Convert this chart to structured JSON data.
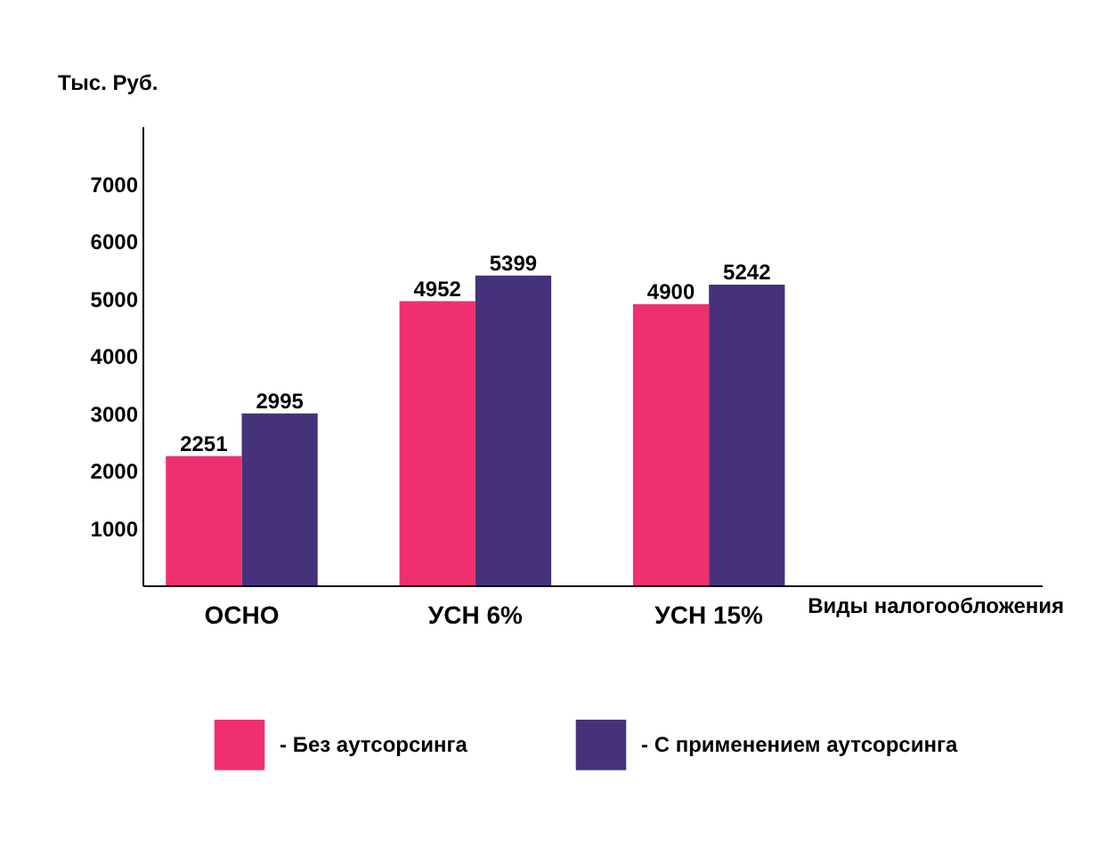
{
  "chart_data": {
    "type": "bar",
    "ylabel": "Тыс. Руб.",
    "xlabel": "Виды налогообложения",
    "categories": [
      "ОСНО",
      "УСН 6%",
      "УСН 15%",
      null
    ],
    "series": [
      {
        "name": "- Без аутсорсинга",
        "color": "#f0306e",
        "values": [
          2251,
          4952,
          4900,
          null
        ]
      },
      {
        "name": "- С применением аутсорсинга",
        "color": "#46327a",
        "values": [
          2995,
          5399,
          5242,
          null
        ]
      }
    ],
    "ylim": [
      0,
      8000
    ],
    "yticks": [
      1000,
      2000,
      3000,
      4000,
      5000,
      6000,
      7000
    ],
    "data_labels": true,
    "grid": false,
    "legend": "bottom"
  }
}
